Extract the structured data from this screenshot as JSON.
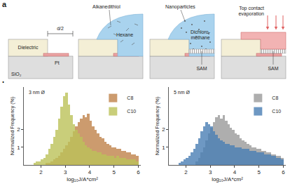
{
  "diagram": {
    "label": "a",
    "dielectric": "Dielectric",
    "gap": "d/2",
    "substrate": "SiO₂",
    "electrode": "Pt",
    "molecule": "Alkanedithiol",
    "solvent_1": "Hexane",
    "particles": "Nanoparticles",
    "solvent_2": [
      "Dichloro-",
      "methane"
    ],
    "layer": "SAM",
    "deposition": [
      "Top contact",
      "evaporation"
    ]
  },
  "panel_b_label": "b",
  "chart_data": [
    {
      "type": "histogram",
      "annotation": "3 nm Ø",
      "x_label": "log₁₀J/A*cm²",
      "y_label": "Normalized Frequency (%)",
      "bins": [
        1.5,
        1.6,
        1.7,
        1.8,
        1.9,
        2.0,
        2.1,
        2.2,
        2.3,
        2.4,
        2.5,
        2.6,
        2.7,
        2.8,
        2.9,
        3.0,
        3.1,
        3.2,
        3.3,
        3.4,
        3.5,
        3.6,
        3.7,
        3.8,
        3.9,
        4.0,
        4.1,
        4.2,
        4.3,
        4.4,
        4.5,
        4.6,
        4.7,
        4.8,
        4.9,
        5.0,
        5.1,
        5.2,
        5.3,
        5.4,
        5.5,
        5.6,
        5.7,
        5.8,
        5.9,
        6.0
      ],
      "series": [
        {
          "name": "C8",
          "color": "#c0834a",
          "values": [
            0,
            0,
            0,
            0,
            0,
            0,
            0,
            0.1,
            0.1,
            0.2,
            0.3,
            0.4,
            0.5,
            0.7,
            0.9,
            1.1,
            1.3,
            1.6,
            1.9,
            2.2,
            2.4,
            2.6,
            2.8,
            2.7,
            2.9,
            2.5,
            2.2,
            2.0,
            1.8,
            1.6,
            1.5,
            1.3,
            1.2,
            1.1,
            1.0,
            1.0,
            0.9,
            0.9,
            0.8,
            0.8,
            0.7,
            0.7,
            0.6,
            0.6,
            0.5
          ]
        },
        {
          "name": "C10",
          "color": "#bcc25a",
          "values": [
            0,
            0,
            0.1,
            0.2,
            0.2,
            0.3,
            0.4,
            0.6,
            0.9,
            1.2,
            1.6,
            2.0,
            2.6,
            3.3,
            3.9,
            4.1,
            3.4,
            2.8,
            2.3,
            2.0,
            1.8,
            1.6,
            1.3,
            1.1,
            1.0,
            0.9,
            0.8,
            0.8,
            0.7,
            0.7,
            0.6,
            0.6,
            0.5,
            0.5,
            0.5,
            0.4,
            0.5,
            0.4,
            0.4,
            0.4,
            0.3,
            0.3,
            0.3,
            0.3,
            0.2
          ]
        }
      ],
      "xlim": [
        1.3,
        6.1
      ],
      "xticks": [
        2,
        3,
        4,
        5,
        6
      ],
      "ylim": [
        0,
        4.4
      ],
      "yticks": [
        1,
        2
      ],
      "legend": "top right"
    },
    {
      "type": "histogram",
      "annotation": "5 nm Ø",
      "x_label": "log₁₀J/A*cm²",
      "y_label": "Normalized Frequency (%)",
      "bins": [
        1.5,
        1.6,
        1.7,
        1.8,
        1.9,
        2.0,
        2.1,
        2.2,
        2.3,
        2.4,
        2.5,
        2.6,
        2.7,
        2.8,
        2.9,
        3.0,
        3.1,
        3.2,
        3.3,
        3.4,
        3.5,
        3.6,
        3.7,
        3.8,
        3.9,
        4.0,
        4.1,
        4.2,
        4.3,
        4.4,
        4.5,
        4.6,
        4.7,
        4.8,
        4.9,
        5.0,
        5.1,
        5.2,
        5.3,
        5.4,
        5.5,
        5.6,
        5.7,
        5.8,
        5.9,
        6.0
      ],
      "series": [
        {
          "name": "C8",
          "color": "#9a9a9a",
          "values": [
            0,
            0,
            0,
            0,
            0,
            0,
            0,
            0,
            0,
            0.2,
            0.4,
            0.7,
            1.0,
            1.4,
            1.8,
            2.1,
            2.4,
            2.7,
            2.8,
            2.6,
            2.8,
            2.5,
            2.3,
            2.1,
            2.0,
            1.8,
            1.7,
            1.5,
            1.4,
            1.3,
            1.2,
            1.1,
            1.0,
            1.0,
            0.9,
            0.9,
            0.8,
            0.8,
            0.7,
            0.7,
            0.6,
            0.6,
            0.5,
            0.5,
            0.4
          ]
        },
        {
          "name": "C10",
          "color": "#4a7fb5",
          "values": [
            0,
            0,
            0.1,
            0.2,
            0.3,
            0.4,
            0.5,
            0.7,
            0.9,
            1.2,
            1.5,
            1.9,
            2.2,
            2.4,
            2.3,
            2.2,
            1.9,
            1.7,
            1.5,
            1.4,
            1.3,
            1.2,
            1.2,
            1.1,
            1.1,
            1.0,
            1.0,
            1.0,
            0.9,
            0.9,
            0.9,
            0.8,
            0.8,
            0.8,
            0.7,
            0.7,
            0.7,
            0.6,
            0.6,
            0.6,
            0.5,
            0.5,
            0.4,
            0.4,
            0.3
          ]
        }
      ],
      "xlim": [
        1.3,
        6.1
      ],
      "xticks": [
        2,
        3,
        4,
        5,
        6
      ],
      "ylim": [
        0,
        4.4
      ],
      "yticks": [
        1,
        2
      ],
      "legend": "top right"
    }
  ]
}
